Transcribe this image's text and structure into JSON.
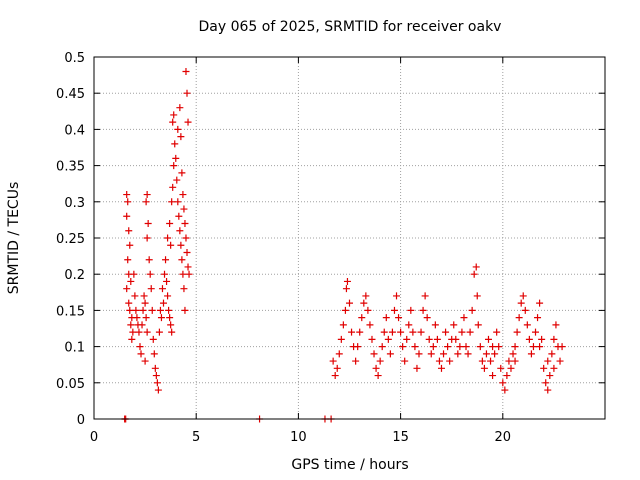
{
  "chart_data": {
    "type": "scatter",
    "title": "Day 065 of 2025, SRMTID for receiver oakv",
    "xlabel": "GPS time / hours",
    "ylabel": "SRMTID / TECUs",
    "xlim": [
      0,
      25
    ],
    "ylim": [
      0,
      0.5
    ],
    "grid": true,
    "marker": "+",
    "color": "#e00000",
    "x_ticks": [
      0,
      5,
      10,
      15,
      20
    ],
    "x_tick_labels": [
      "0",
      "5",
      "10",
      "15",
      "20"
    ],
    "y_ticks": [
      0,
      0.05,
      0.1,
      0.15,
      0.2,
      0.25,
      0.3,
      0.35,
      0.4,
      0.45,
      0.5
    ],
    "y_tick_labels": [
      "0",
      "0.05",
      "0.1",
      "0.15",
      "0.2",
      "0.25",
      "0.3",
      "0.35",
      "0.4",
      "0.45",
      "0.5"
    ],
    "series": [
      {
        "name": "SRMTID",
        "points": [
          [
            1.5,
            0.0
          ],
          [
            1.55,
            0.0
          ],
          [
            8.1,
            0.0
          ],
          [
            11.3,
            0.0
          ],
          [
            11.6,
            0.0
          ],
          [
            1.6,
            0.31
          ],
          [
            1.65,
            0.3
          ],
          [
            1.6,
            0.28
          ],
          [
            1.7,
            0.26
          ],
          [
            1.75,
            0.24
          ],
          [
            1.65,
            0.22
          ],
          [
            1.7,
            0.2
          ],
          [
            1.8,
            0.19
          ],
          [
            1.6,
            0.18
          ],
          [
            1.7,
            0.16
          ],
          [
            1.75,
            0.15
          ],
          [
            1.85,
            0.14
          ],
          [
            1.8,
            0.13
          ],
          [
            1.9,
            0.12
          ],
          [
            1.85,
            0.11
          ],
          [
            1.95,
            0.2
          ],
          [
            2.0,
            0.17
          ],
          [
            2.05,
            0.15
          ],
          [
            2.1,
            0.14
          ],
          [
            2.15,
            0.13
          ],
          [
            2.2,
            0.12
          ],
          [
            2.25,
            0.1
          ],
          [
            2.3,
            0.09
          ],
          [
            2.35,
            0.13
          ],
          [
            2.4,
            0.15
          ],
          [
            2.45,
            0.17
          ],
          [
            2.5,
            0.16
          ],
          [
            2.55,
            0.14
          ],
          [
            2.6,
            0.12
          ],
          [
            2.5,
            0.08
          ],
          [
            2.55,
            0.3
          ],
          [
            2.6,
            0.31
          ],
          [
            2.65,
            0.27
          ],
          [
            2.6,
            0.25
          ],
          [
            2.7,
            0.22
          ],
          [
            2.75,
            0.2
          ],
          [
            2.8,
            0.18
          ],
          [
            2.85,
            0.15
          ],
          [
            2.9,
            0.11
          ],
          [
            2.95,
            0.09
          ],
          [
            3.0,
            0.07
          ],
          [
            3.05,
            0.06
          ],
          [
            3.1,
            0.05
          ],
          [
            3.15,
            0.04
          ],
          [
            3.2,
            0.12
          ],
          [
            3.25,
            0.15
          ],
          [
            3.3,
            0.14
          ],
          [
            3.35,
            0.18
          ],
          [
            3.4,
            0.16
          ],
          [
            3.45,
            0.2
          ],
          [
            3.5,
            0.22
          ],
          [
            3.55,
            0.19
          ],
          [
            3.6,
            0.17
          ],
          [
            3.65,
            0.15
          ],
          [
            3.7,
            0.14
          ],
          [
            3.75,
            0.13
          ],
          [
            3.8,
            0.12
          ],
          [
            3.6,
            0.25
          ],
          [
            3.7,
            0.27
          ],
          [
            3.75,
            0.24
          ],
          [
            3.8,
            0.3
          ],
          [
            3.85,
            0.32
          ],
          [
            3.9,
            0.35
          ],
          [
            3.95,
            0.38
          ],
          [
            3.85,
            0.41
          ],
          [
            3.9,
            0.42
          ],
          [
            4.0,
            0.36
          ],
          [
            4.05,
            0.33
          ],
          [
            4.1,
            0.3
          ],
          [
            4.15,
            0.28
          ],
          [
            4.2,
            0.26
          ],
          [
            4.25,
            0.24
          ],
          [
            4.3,
            0.22
          ],
          [
            4.35,
            0.2
          ],
          [
            4.4,
            0.18
          ],
          [
            4.1,
            0.4
          ],
          [
            4.2,
            0.43
          ],
          [
            4.25,
            0.39
          ],
          [
            4.3,
            0.34
          ],
          [
            4.35,
            0.31
          ],
          [
            4.4,
            0.29
          ],
          [
            4.45,
            0.27
          ],
          [
            4.5,
            0.25
          ],
          [
            4.55,
            0.23
          ],
          [
            4.6,
            0.21
          ],
          [
            4.65,
            0.2
          ],
          [
            4.5,
            0.48
          ],
          [
            4.55,
            0.45
          ],
          [
            4.6,
            0.41
          ],
          [
            4.45,
            0.15
          ],
          [
            11.7,
            0.08
          ],
          [
            11.8,
            0.06
          ],
          [
            11.9,
            0.07
          ],
          [
            12.0,
            0.09
          ],
          [
            12.1,
            0.11
          ],
          [
            12.2,
            0.13
          ],
          [
            12.3,
            0.15
          ],
          [
            12.35,
            0.18
          ],
          [
            12.4,
            0.19
          ],
          [
            12.5,
            0.16
          ],
          [
            12.6,
            0.12
          ],
          [
            12.7,
            0.1
          ],
          [
            12.8,
            0.08
          ],
          [
            12.9,
            0.1
          ],
          [
            13.0,
            0.12
          ],
          [
            13.1,
            0.14
          ],
          [
            13.2,
            0.16
          ],
          [
            13.3,
            0.17
          ],
          [
            13.4,
            0.15
          ],
          [
            13.5,
            0.13
          ],
          [
            13.6,
            0.11
          ],
          [
            13.7,
            0.09
          ],
          [
            13.8,
            0.07
          ],
          [
            13.9,
            0.06
          ],
          [
            14.0,
            0.08
          ],
          [
            14.1,
            0.1
          ],
          [
            14.2,
            0.12
          ],
          [
            14.3,
            0.14
          ],
          [
            14.4,
            0.11
          ],
          [
            14.5,
            0.09
          ],
          [
            14.6,
            0.12
          ],
          [
            14.7,
            0.15
          ],
          [
            14.8,
            0.17
          ],
          [
            14.9,
            0.14
          ],
          [
            15.0,
            0.12
          ],
          [
            15.1,
            0.1
          ],
          [
            15.2,
            0.08
          ],
          [
            15.3,
            0.11
          ],
          [
            15.4,
            0.13
          ],
          [
            15.5,
            0.15
          ],
          [
            15.6,
            0.12
          ],
          [
            15.7,
            0.1
          ],
          [
            15.8,
            0.07
          ],
          [
            15.9,
            0.09
          ],
          [
            16.0,
            0.12
          ],
          [
            16.1,
            0.15
          ],
          [
            16.2,
            0.17
          ],
          [
            16.3,
            0.14
          ],
          [
            16.4,
            0.11
          ],
          [
            16.5,
            0.09
          ],
          [
            16.6,
            0.1
          ],
          [
            16.7,
            0.13
          ],
          [
            16.8,
            0.11
          ],
          [
            16.9,
            0.08
          ],
          [
            17.0,
            0.07
          ],
          [
            17.1,
            0.09
          ],
          [
            17.2,
            0.12
          ],
          [
            17.3,
            0.1
          ],
          [
            17.4,
            0.08
          ],
          [
            17.5,
            0.11
          ],
          [
            17.6,
            0.13
          ],
          [
            17.7,
            0.11
          ],
          [
            17.8,
            0.09
          ],
          [
            17.9,
            0.1
          ],
          [
            18.0,
            0.12
          ],
          [
            18.1,
            0.14
          ],
          [
            18.2,
            0.1
          ],
          [
            18.3,
            0.09
          ],
          [
            18.4,
            0.12
          ],
          [
            18.5,
            0.15
          ],
          [
            18.6,
            0.2
          ],
          [
            18.7,
            0.21
          ],
          [
            18.75,
            0.17
          ],
          [
            18.8,
            0.13
          ],
          [
            18.9,
            0.1
          ],
          [
            19.0,
            0.08
          ],
          [
            19.1,
            0.07
          ],
          [
            19.2,
            0.09
          ],
          [
            19.3,
            0.11
          ],
          [
            19.4,
            0.08
          ],
          [
            19.5,
            0.06
          ],
          [
            19.6,
            0.09
          ],
          [
            19.7,
            0.12
          ],
          [
            19.8,
            0.1
          ],
          [
            19.9,
            0.07
          ],
          [
            20.0,
            0.05
          ],
          [
            20.1,
            0.04
          ],
          [
            20.2,
            0.06
          ],
          [
            20.3,
            0.08
          ],
          [
            20.4,
            0.07
          ],
          [
            20.5,
            0.09
          ],
          [
            20.6,
            0.1
          ],
          [
            20.7,
            0.12
          ],
          [
            20.8,
            0.14
          ],
          [
            20.9,
            0.16
          ],
          [
            21.0,
            0.17
          ],
          [
            21.1,
            0.15
          ],
          [
            21.2,
            0.13
          ],
          [
            21.3,
            0.11
          ],
          [
            21.4,
            0.09
          ],
          [
            21.5,
            0.1
          ],
          [
            21.6,
            0.12
          ],
          [
            21.7,
            0.14
          ],
          [
            21.8,
            0.16
          ],
          [
            21.9,
            0.11
          ],
          [
            22.0,
            0.07
          ],
          [
            22.1,
            0.05
          ],
          [
            22.2,
            0.04
          ],
          [
            22.3,
            0.06
          ],
          [
            22.4,
            0.09
          ],
          [
            22.5,
            0.11
          ],
          [
            22.6,
            0.13
          ],
          [
            22.7,
            0.1
          ],
          [
            22.8,
            0.08
          ],
          [
            22.9,
            0.1
          ],
          [
            22.2,
            0.08
          ],
          [
            22.5,
            0.07
          ],
          [
            21.8,
            0.1
          ],
          [
            20.6,
            0.08
          ],
          [
            19.5,
            0.1
          ]
        ]
      }
    ]
  }
}
